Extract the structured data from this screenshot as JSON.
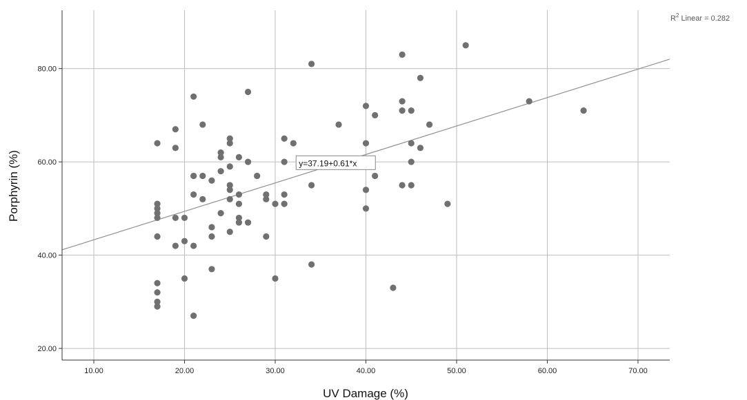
{
  "chart_data": {
    "type": "scatter",
    "xlabel": "UV Damage (%)",
    "ylabel": "Porphyrin (%)",
    "xlim": [
      6.5,
      73.5
    ],
    "ylim": [
      17.5,
      92.5
    ],
    "x_ticks": [
      10,
      20,
      30,
      40,
      50,
      60,
      70
    ],
    "x_tick_labels": [
      "10.00",
      "20.00",
      "30.00",
      "40.00",
      "50.00",
      "60.00",
      "70.00"
    ],
    "y_ticks": [
      20,
      40,
      60,
      80
    ],
    "y_tick_labels": [
      "20.00",
      "40.00",
      "60.00",
      "80.00"
    ],
    "grid": true,
    "fit_line": {
      "intercept": 37.19,
      "slope": 0.61,
      "equation_label": "y=37.19+0.61*x",
      "r2_prefix": "R",
      "r2_sup": "2",
      "r2_suffix": " Linear = 0.282"
    },
    "colors": {
      "points": "#707070",
      "fit_line": "#909090",
      "grid": "#bdbdbd",
      "axis": "#333333"
    },
    "points": [
      {
        "x": 17,
        "y": 64
      },
      {
        "x": 17,
        "y": 51
      },
      {
        "x": 17,
        "y": 50
      },
      {
        "x": 17,
        "y": 49
      },
      {
        "x": 17,
        "y": 48
      },
      {
        "x": 17,
        "y": 44
      },
      {
        "x": 17,
        "y": 34
      },
      {
        "x": 17,
        "y": 32
      },
      {
        "x": 17,
        "y": 30
      },
      {
        "x": 17,
        "y": 29
      },
      {
        "x": 19,
        "y": 67
      },
      {
        "x": 19,
        "y": 63
      },
      {
        "x": 19,
        "y": 48
      },
      {
        "x": 19,
        "y": 42
      },
      {
        "x": 20,
        "y": 48
      },
      {
        "x": 20,
        "y": 43
      },
      {
        "x": 20,
        "y": 35
      },
      {
        "x": 21,
        "y": 74
      },
      {
        "x": 21,
        "y": 57
      },
      {
        "x": 21,
        "y": 53
      },
      {
        "x": 21,
        "y": 42
      },
      {
        "x": 21,
        "y": 27
      },
      {
        "x": 22,
        "y": 68
      },
      {
        "x": 22,
        "y": 57
      },
      {
        "x": 22,
        "y": 52
      },
      {
        "x": 23,
        "y": 56
      },
      {
        "x": 23,
        "y": 46
      },
      {
        "x": 23,
        "y": 44
      },
      {
        "x": 23,
        "y": 37
      },
      {
        "x": 24,
        "y": 62
      },
      {
        "x": 24,
        "y": 61
      },
      {
        "x": 24,
        "y": 58
      },
      {
        "x": 24,
        "y": 49
      },
      {
        "x": 25,
        "y": 65
      },
      {
        "x": 25,
        "y": 64
      },
      {
        "x": 25,
        "y": 59
      },
      {
        "x": 25,
        "y": 55
      },
      {
        "x": 25,
        "y": 54
      },
      {
        "x": 25,
        "y": 52
      },
      {
        "x": 25,
        "y": 45
      },
      {
        "x": 26,
        "y": 61
      },
      {
        "x": 26,
        "y": 53
      },
      {
        "x": 26,
        "y": 51
      },
      {
        "x": 26,
        "y": 48
      },
      {
        "x": 26,
        "y": 47
      },
      {
        "x": 27,
        "y": 75
      },
      {
        "x": 27,
        "y": 60
      },
      {
        "x": 27,
        "y": 47
      },
      {
        "x": 28,
        "y": 57
      },
      {
        "x": 29,
        "y": 53
      },
      {
        "x": 29,
        "y": 52
      },
      {
        "x": 29,
        "y": 44
      },
      {
        "x": 30,
        "y": 51
      },
      {
        "x": 30,
        "y": 35
      },
      {
        "x": 31,
        "y": 65
      },
      {
        "x": 31,
        "y": 60
      },
      {
        "x": 31,
        "y": 53
      },
      {
        "x": 31,
        "y": 51
      },
      {
        "x": 32,
        "y": 64
      },
      {
        "x": 33,
        "y": 60
      },
      {
        "x": 34,
        "y": 81
      },
      {
        "x": 34,
        "y": 60
      },
      {
        "x": 34,
        "y": 55
      },
      {
        "x": 34,
        "y": 38
      },
      {
        "x": 37,
        "y": 68
      },
      {
        "x": 40,
        "y": 72
      },
      {
        "x": 40,
        "y": 64
      },
      {
        "x": 40,
        "y": 54
      },
      {
        "x": 40,
        "y": 50
      },
      {
        "x": 41,
        "y": 70
      },
      {
        "x": 41,
        "y": 57
      },
      {
        "x": 43,
        "y": 33
      },
      {
        "x": 44,
        "y": 83
      },
      {
        "x": 44,
        "y": 73
      },
      {
        "x": 44,
        "y": 71
      },
      {
        "x": 44,
        "y": 55
      },
      {
        "x": 45,
        "y": 71
      },
      {
        "x": 45,
        "y": 64
      },
      {
        "x": 45,
        "y": 60
      },
      {
        "x": 45,
        "y": 55
      },
      {
        "x": 46,
        "y": 78
      },
      {
        "x": 46,
        "y": 63
      },
      {
        "x": 47,
        "y": 68
      },
      {
        "x": 49,
        "y": 51
      },
      {
        "x": 51,
        "y": 85
      },
      {
        "x": 58,
        "y": 73
      },
      {
        "x": 64,
        "y": 71
      }
    ]
  }
}
